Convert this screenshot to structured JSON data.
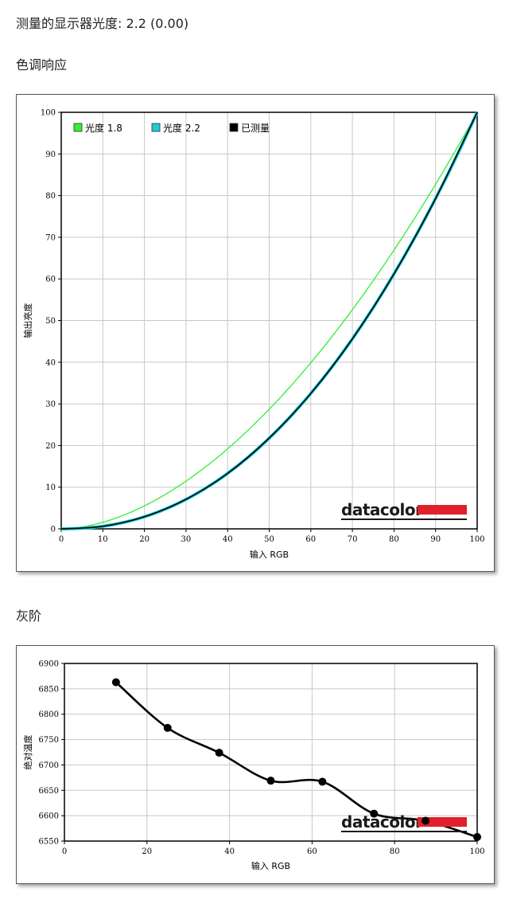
{
  "header": {
    "gamma_line": "测量的显示器光度: 2.2 (0.00)",
    "tone_heading": "色调响应",
    "gray_heading": "灰阶"
  },
  "brand": {
    "logo_text": "datacolor",
    "logo_bar_color": "#e0202a"
  },
  "chart_data": [
    {
      "type": "line",
      "title": "",
      "xlabel": "输入 RGB",
      "ylabel": "输出亮度",
      "xlim": [
        0,
        100
      ],
      "ylim": [
        0,
        100
      ],
      "x_ticks": [
        "0",
        "10",
        "20",
        "30",
        "40",
        "50",
        "60",
        "70",
        "80",
        "90",
        "100"
      ],
      "y_ticks": [
        "0",
        "10",
        "20",
        "30",
        "40",
        "50",
        "60",
        "70",
        "80",
        "90",
        "100"
      ],
      "grid": true,
      "legend_position": "top-left",
      "series": [
        {
          "name": "光度 1.8",
          "color": "#33ee33",
          "gamma": 1.8,
          "x": [
            0,
            10,
            20,
            30,
            40,
            50,
            60,
            70,
            80,
            90,
            100
          ],
          "y": [
            0,
            1.6,
            5.5,
            11.5,
            19.2,
            28.7,
            39.9,
            52.6,
            66.9,
            82.7,
            100
          ]
        },
        {
          "name": "光度 2.2",
          "color": "#22c8d8",
          "gamma": 2.2,
          "x": [
            0,
            10,
            20,
            30,
            40,
            50,
            60,
            70,
            80,
            90,
            100
          ],
          "y": [
            0,
            0.6,
            2.9,
            7.1,
            13.3,
            21.8,
            32.5,
            45.6,
            61.2,
            79.3,
            100
          ]
        },
        {
          "name": "已测量",
          "color": "#000000",
          "x": [
            0,
            10,
            20,
            30,
            40,
            50,
            60,
            70,
            80,
            90,
            100
          ],
          "y": [
            0,
            0.6,
            2.9,
            7.1,
            13.3,
            21.8,
            32.5,
            45.6,
            61.2,
            79.3,
            100
          ]
        }
      ]
    },
    {
      "type": "line",
      "title": "",
      "xlabel": "输入 RGB",
      "ylabel": "绝对温度",
      "xlim": [
        0,
        100
      ],
      "ylim": [
        6550,
        6900
      ],
      "x_ticks": [
        "0",
        "20",
        "40",
        "60",
        "80",
        "100"
      ],
      "y_ticks": [
        "6550",
        "6600",
        "6650",
        "6700",
        "6750",
        "6800",
        "6850",
        "6900"
      ],
      "grid": true,
      "series": [
        {
          "color": "#000000",
          "x": [
            12.5,
            25,
            37.5,
            50,
            62.5,
            75,
            87.5,
            100
          ],
          "y": [
            6863,
            6773,
            6724,
            6669,
            6667,
            6604,
            6590,
            6558
          ]
        }
      ]
    }
  ]
}
